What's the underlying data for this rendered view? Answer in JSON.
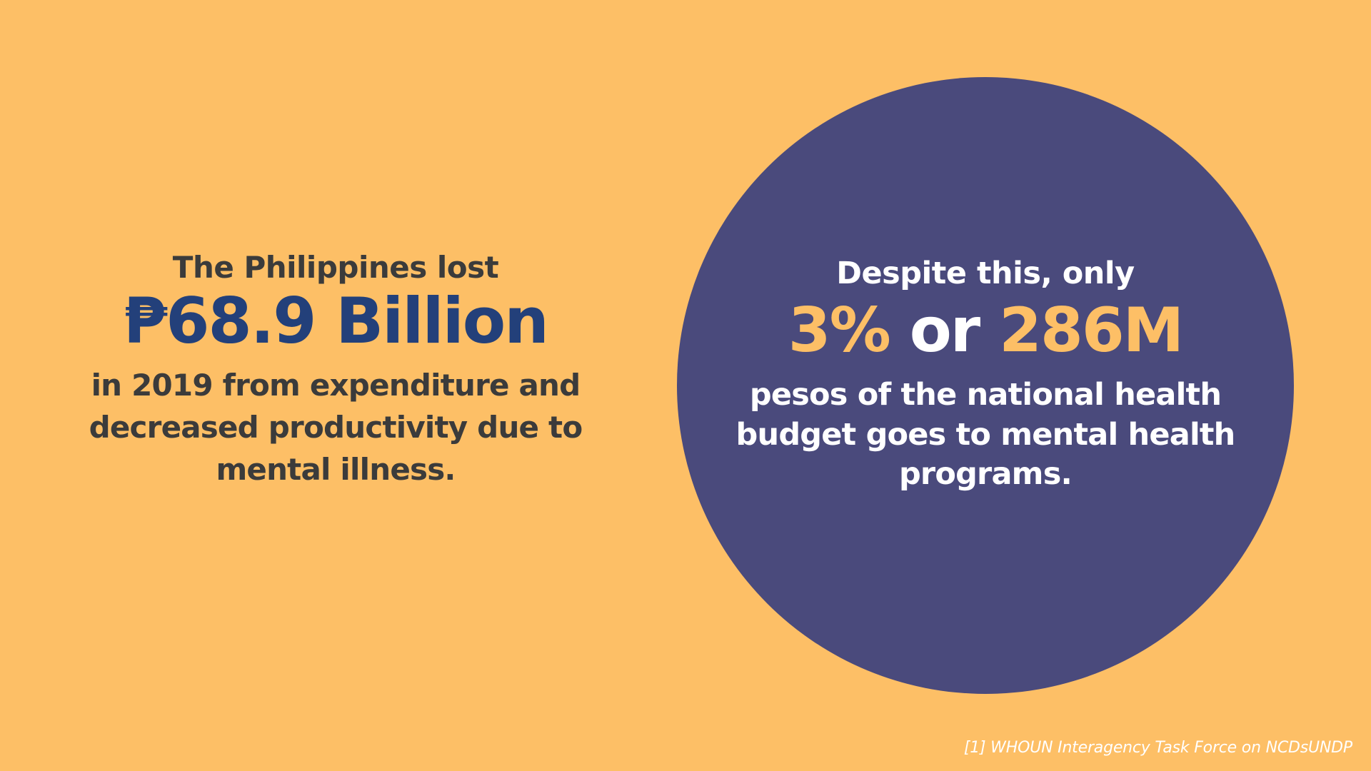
{
  "colors": {
    "background": "#FDBF66",
    "circle": "#4A4A7C",
    "dark_text": "#3B3B3B",
    "amount_accent": "#23407A",
    "stat_accent": "#FDBF66",
    "light_text": "#FFFFFF"
  },
  "left": {
    "intro": "The Philippines lost",
    "amount": "₱68.9 Billion",
    "description": "in 2019 from expenditure and decreased productivity due to mental illness."
  },
  "right": {
    "intro": "Despite this, only",
    "stat_percent": "3%",
    "stat_connector": " or ",
    "stat_amount": "286M",
    "description": "pesos of the national health budget goes to mental health programs."
  },
  "footnote": "[1] WHOUN Interagency Task Force on NCDsUNDP"
}
